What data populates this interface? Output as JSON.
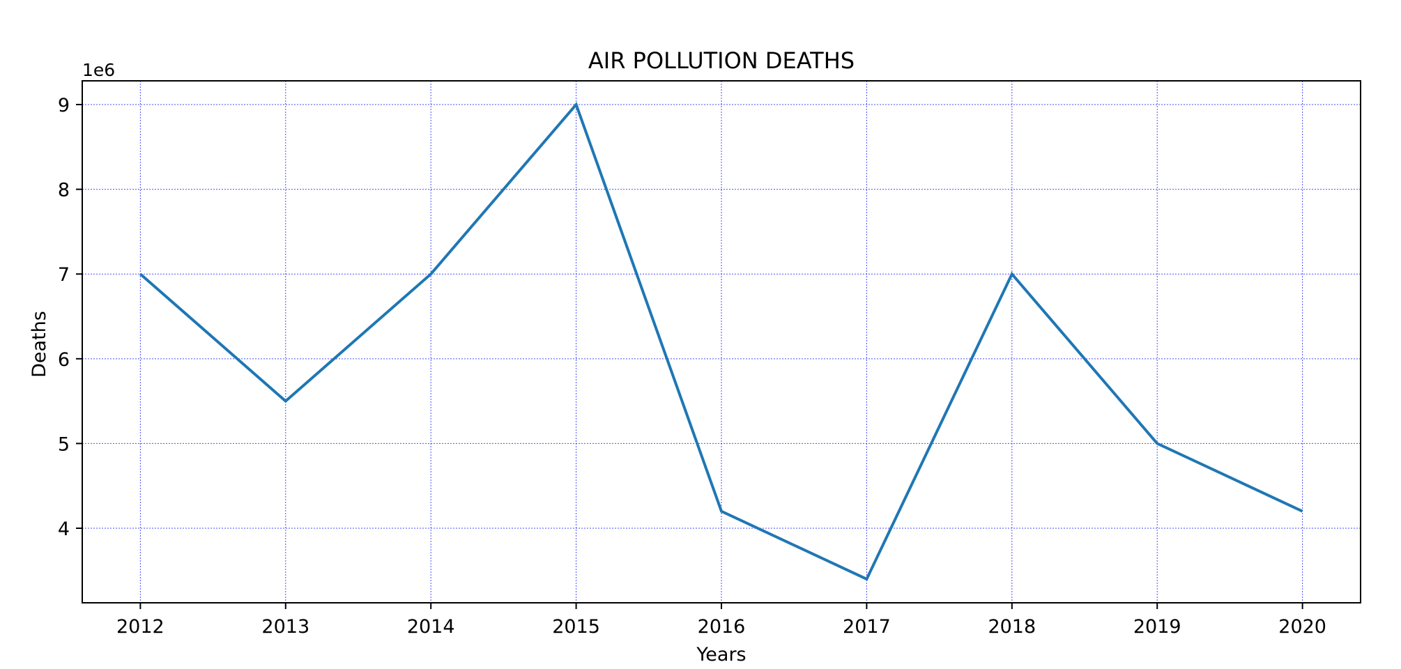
{
  "chart_data": {
    "type": "line",
    "title": "AIR POLLUTION DEATHS",
    "xlabel": "Years",
    "ylabel": "Deaths",
    "y_offset_label": "1e6",
    "x": [
      2012,
      2013,
      2014,
      2015,
      2016,
      2017,
      2018,
      2019,
      2020
    ],
    "x_tick_labels": [
      "2012",
      "2013",
      "2014",
      "2015",
      "2016",
      "2017",
      "2018",
      "2019",
      "2020"
    ],
    "series": [
      {
        "values": [
          7000000,
          5500000,
          7000000,
          9000000,
          4200000,
          3400000,
          7000000,
          5000000,
          4200000
        ]
      }
    ],
    "y_ticks": [
      4000000,
      5000000,
      6000000,
      7000000,
      8000000,
      9000000
    ],
    "y_tick_labels": [
      "4",
      "5",
      "6",
      "7",
      "8",
      "9"
    ],
    "xlim": [
      2011.6,
      2020.4
    ],
    "ylim": [
      3120000,
      9280000
    ],
    "grid": true,
    "colors": {
      "line": "#1f77b4",
      "grid": "#0000ff",
      "axis": "#000000"
    }
  }
}
